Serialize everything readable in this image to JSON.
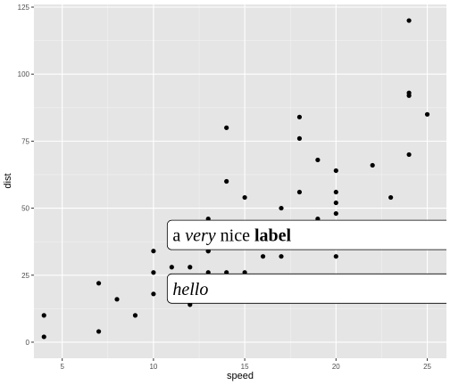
{
  "chart_data": {
    "type": "scatter",
    "xlabel": "speed",
    "ylabel": "dist",
    "xlim": [
      3.45,
      26.05
    ],
    "ylim": [
      -6.0,
      126.0
    ],
    "x_ticks": [
      5,
      10,
      15,
      20,
      25
    ],
    "y_ticks": [
      0,
      25,
      50,
      75,
      100,
      125
    ],
    "x_tick_labels": [
      "5",
      "10",
      "15",
      "20",
      "25"
    ],
    "y_tick_labels": [
      "0",
      "25",
      "50",
      "75",
      "100",
      "125"
    ],
    "grid": true,
    "panel_color": "#e5e5e5",
    "point_color": "#000000",
    "points": [
      [
        4,
        2
      ],
      [
        4,
        10
      ],
      [
        7,
        4
      ],
      [
        7,
        22
      ],
      [
        8,
        16
      ],
      [
        9,
        10
      ],
      [
        10,
        18
      ],
      [
        10,
        26
      ],
      [
        10,
        34
      ],
      [
        11,
        17
      ],
      [
        11,
        28
      ],
      [
        12,
        14
      ],
      [
        12,
        20
      ],
      [
        12,
        24
      ],
      [
        12,
        28
      ],
      [
        13,
        26
      ],
      [
        13,
        34
      ],
      [
        13,
        34
      ],
      [
        13,
        46
      ],
      [
        14,
        26
      ],
      [
        14,
        36
      ],
      [
        14,
        60
      ],
      [
        14,
        80
      ],
      [
        15,
        20
      ],
      [
        15,
        26
      ],
      [
        15,
        54
      ],
      [
        16,
        32
      ],
      [
        16,
        40
      ],
      [
        17,
        32
      ],
      [
        17,
        40
      ],
      [
        17,
        50
      ],
      [
        18,
        42
      ],
      [
        18,
        56
      ],
      [
        18,
        76
      ],
      [
        18,
        84
      ],
      [
        19,
        36
      ],
      [
        19,
        46
      ],
      [
        19,
        68
      ],
      [
        20,
        32
      ],
      [
        20,
        48
      ],
      [
        20,
        52
      ],
      [
        20,
        56
      ],
      [
        20,
        64
      ],
      [
        22,
        66
      ],
      [
        23,
        54
      ],
      [
        24,
        70
      ],
      [
        24,
        92
      ],
      [
        24,
        93
      ],
      [
        24,
        120
      ],
      [
        25,
        85
      ]
    ],
    "annotations": [
      {
        "x": 11,
        "y": 40,
        "segments": [
          {
            "text": "a ",
            "style": "normal"
          },
          {
            "text": "very",
            "style": "italic"
          },
          {
            "text": " nice ",
            "style": "normal"
          },
          {
            "text": "label",
            "style": "bold"
          }
        ]
      },
      {
        "x": 11,
        "y": 20,
        "segments": [
          {
            "text": "hello",
            "style": "italic"
          }
        ]
      }
    ]
  }
}
